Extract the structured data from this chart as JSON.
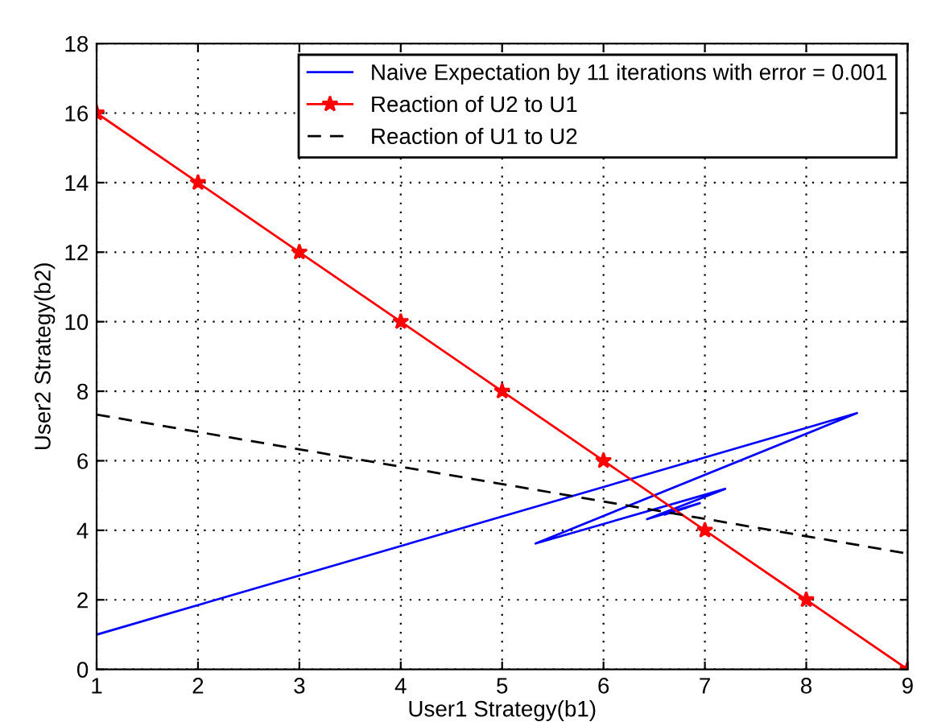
{
  "chart_data": {
    "type": "line",
    "xlabel": "User1 Strategy(b1)",
    "ylabel": "User2 Strategy(b2)",
    "xlim": [
      1,
      9
    ],
    "ylim": [
      0,
      18
    ],
    "xticks": [
      1,
      2,
      3,
      4,
      5,
      6,
      7,
      8,
      9
    ],
    "yticks": [
      0,
      2,
      4,
      6,
      8,
      10,
      12,
      14,
      16,
      18
    ],
    "grid": true,
    "legend": "top right",
    "series": [
      {
        "name": "Naive Expectation by 11 iterations with error = 0.001",
        "color": "#0000ff",
        "x": [
          1,
          8.5,
          5.33,
          7.2,
          6.43,
          6.95,
          6.6,
          6.82,
          6.68,
          6.75,
          6.71
        ],
        "values": [
          1.0,
          7.37,
          3.62,
          5.19,
          4.32,
          4.78,
          4.45,
          4.65,
          4.55,
          4.6,
          4.57
        ],
        "marker": "none",
        "line_style": "solid"
      },
      {
        "name": "Reaction of U2 to U1",
        "color": "#ff0000",
        "x": [
          1,
          2,
          3,
          4,
          5,
          6,
          7,
          8,
          9
        ],
        "values": [
          16,
          14,
          12,
          10,
          8,
          6,
          4,
          2,
          0
        ],
        "marker": "star",
        "line_style": "solid"
      },
      {
        "name": "Reaction of U1 to U2",
        "color": "#000000",
        "x": [
          1,
          9
        ],
        "values": [
          7.33,
          3.33
        ],
        "marker": "none",
        "line_style": "dashed"
      }
    ]
  }
}
